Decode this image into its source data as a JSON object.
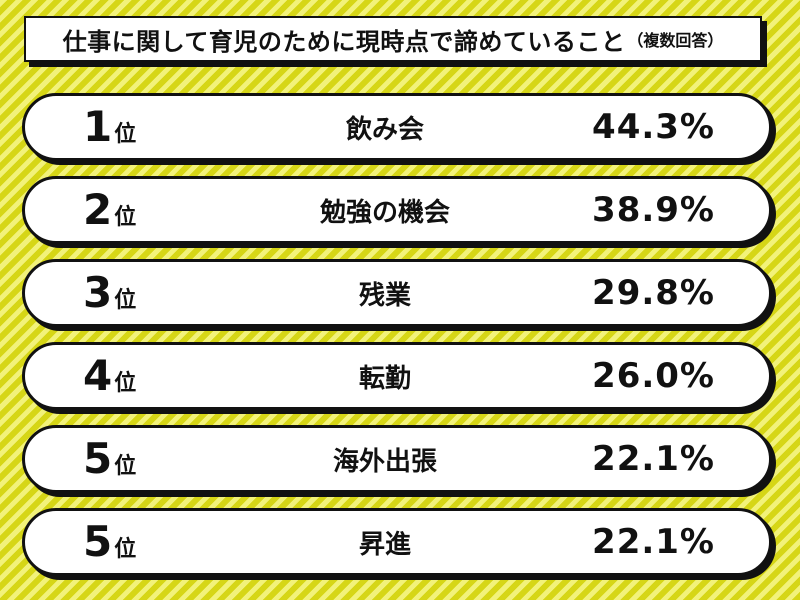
{
  "chart_data": {
    "type": "table",
    "title": "仕事に関して育児のために現時点で諦めていること",
    "subtitle": "（複数回答）",
    "rank_suffix": "位",
    "rows": [
      {
        "rank": "1",
        "label": "飲み会",
        "value": 44.3,
        "display": "44.3%"
      },
      {
        "rank": "2",
        "label": "勉強の機会",
        "value": 38.9,
        "display": "38.9%"
      },
      {
        "rank": "3",
        "label": "残業",
        "value": 29.8,
        "display": "29.8%"
      },
      {
        "rank": "4",
        "label": "転勤",
        "value": 26.0,
        "display": "26.0%"
      },
      {
        "rank": "5",
        "label": "海外出張",
        "value": 22.1,
        "display": "22.1%"
      },
      {
        "rank": "5",
        "label": "昇進",
        "value": 22.1,
        "display": "22.1%"
      }
    ],
    "colors": {
      "background": "#dddd22",
      "stripe_light": "#f2f27a",
      "card": "#ffffff",
      "ink": "#111111"
    }
  }
}
